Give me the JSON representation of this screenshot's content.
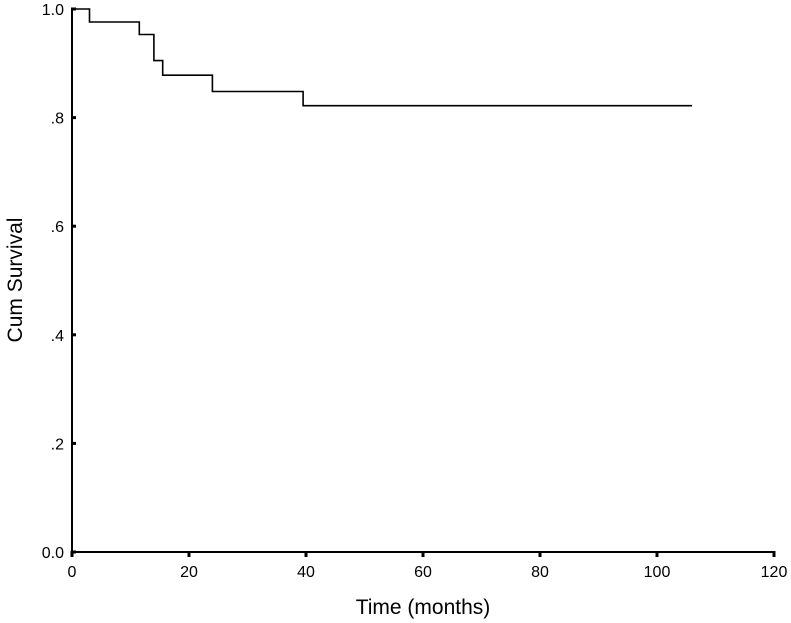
{
  "chart_data": {
    "type": "line",
    "subtype": "kaplan-meier-step",
    "xlabel": "Time (months)",
    "ylabel": "Cum Survival",
    "xlim": [
      0,
      120
    ],
    "ylim": [
      0,
      1
    ],
    "x_ticks": [
      0,
      20,
      40,
      60,
      80,
      100,
      120
    ],
    "x_tick_labels": [
      "0",
      "20",
      "40",
      "60",
      "80",
      "100",
      "120"
    ],
    "y_ticks": [
      0,
      0.2,
      0.4,
      0.6,
      0.8,
      1.0
    ],
    "y_tick_labels": [
      "0.0",
      ".2",
      ".4",
      ".6",
      ".8",
      "1.0"
    ],
    "grid": false,
    "legend": "none",
    "line_color": "#000000",
    "series": [
      {
        "step_x": [
          0,
          3,
          11.5,
          14,
          15.5,
          24,
          39.5,
          106
        ],
        "step_y": [
          1.0,
          0.976,
          0.953,
          0.905,
          0.878,
          0.848,
          0.822,
          0.822
        ]
      }
    ]
  }
}
